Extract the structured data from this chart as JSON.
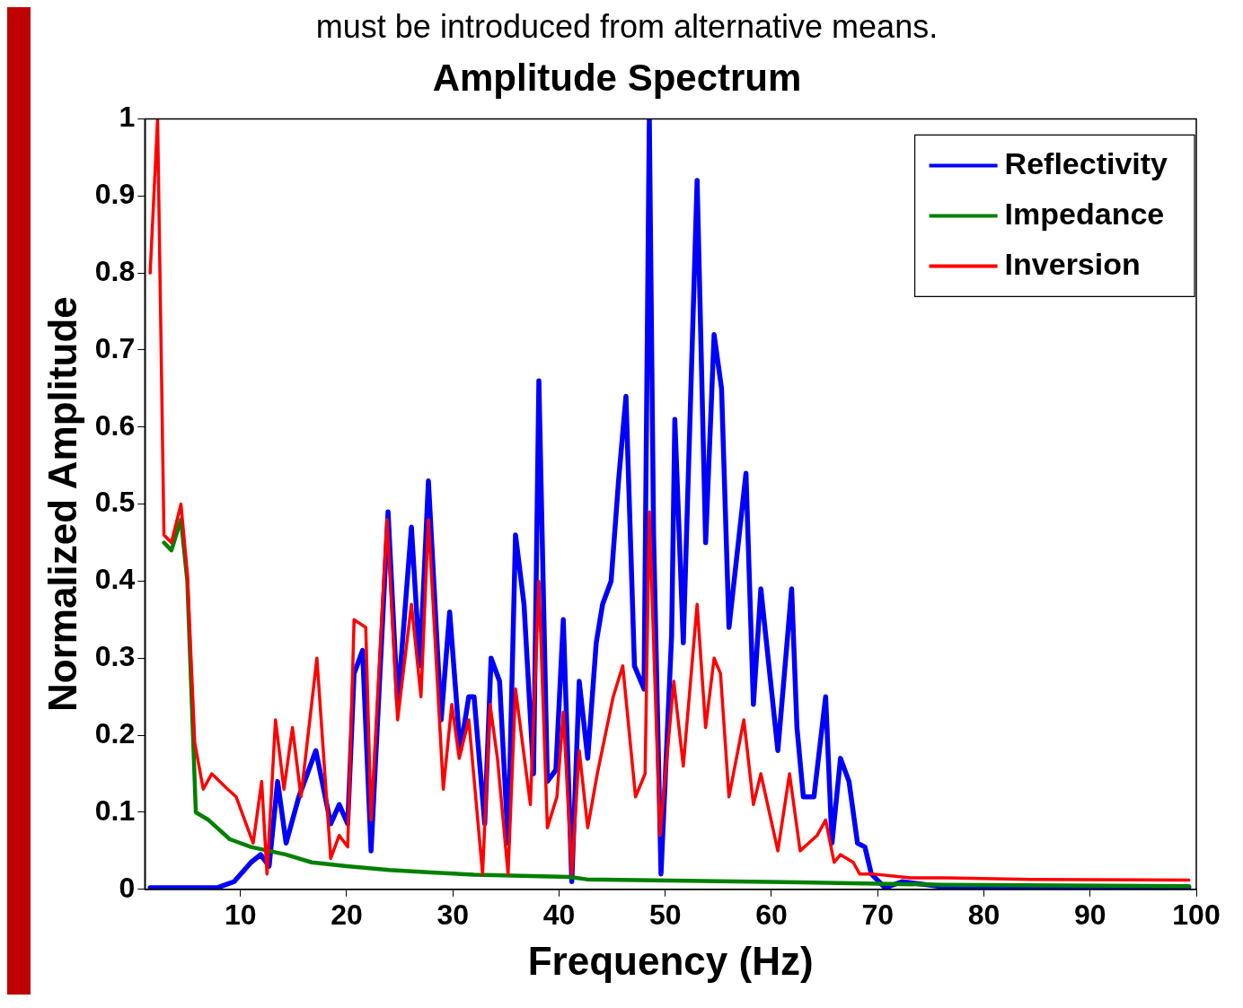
{
  "chart_data": {
    "type": "line",
    "title": "Amplitude Spectrum",
    "xlabel": "Frequency (Hz)",
    "ylabel": "Normalized Amplitude",
    "annotations": [
      "must be introduced from alternative means."
    ],
    "xlim": [
      1,
      100
    ],
    "xticks": [
      10,
      20,
      30,
      40,
      50,
      60,
      70,
      80,
      90,
      100
    ],
    "ylim": [
      0,
      1
    ],
    "yticks": [
      0,
      0.1,
      0.2,
      0.3,
      0.4,
      0.5,
      0.6,
      0.7,
      0.8,
      0.9,
      1
    ],
    "grid": false,
    "legend": "top right",
    "marker": "none",
    "line_style": "solid",
    "series": [
      {
        "name": "Reflectivity",
        "color": "#0000ff",
        "x": [
          1.5,
          7.8,
          9.4,
          11,
          11.9,
          12.7,
          13.5,
          14.3,
          15.5,
          17.1,
          18.5,
          19.3,
          20.1,
          20.7,
          21.5,
          22.3,
          23.9,
          24.8,
          26.1,
          26.9,
          27.7,
          28.9,
          29.7,
          30.7,
          31.5,
          32,
          33,
          33.6,
          34.4,
          35.2,
          35.9,
          36.7,
          37.6,
          38.1,
          38.9,
          39.7,
          40.4,
          41.2,
          41.9,
          42.7,
          43.5,
          44.1,
          44.9,
          45.6,
          46.3,
          47.1,
          48,
          48.5,
          48.9,
          49.6,
          50.6,
          50.9,
          51.7,
          53,
          53.8,
          54.6,
          55.3,
          56,
          57.6,
          58.3,
          59,
          60.6,
          61.9,
          62.4,
          63,
          64,
          65.1,
          65.7,
          66.5,
          67.3,
          68.1,
          68.8,
          69.4,
          70.7,
          72.3,
          76.4,
          84.4,
          99.3
        ],
        "values": [
          0.002,
          0.002,
          0.01,
          0.035,
          0.045,
          0.03,
          0.14,
          0.06,
          0.12,
          0.18,
          0.085,
          0.11,
          0.085,
          0.28,
          0.31,
          0.05,
          0.49,
          0.24,
          0.47,
          0.29,
          0.53,
          0.22,
          0.36,
          0.18,
          0.25,
          0.25,
          0.085,
          0.3,
          0.27,
          0.06,
          0.46,
          0.37,
          0.15,
          0.66,
          0.14,
          0.155,
          0.35,
          0.01,
          0.27,
          0.17,
          0.32,
          0.37,
          0.4,
          0.53,
          0.64,
          0.29,
          0.26,
          1,
          0.46,
          0.02,
          0.33,
          0.61,
          0.32,
          0.92,
          0.45,
          0.72,
          0.65,
          0.34,
          0.54,
          0.24,
          0.39,
          0.18,
          0.39,
          0.21,
          0.12,
          0.12,
          0.25,
          0.06,
          0.17,
          0.14,
          0.06,
          0.055,
          0.02,
          0.002,
          0.01,
          0.003,
          0.003,
          0.003
        ]
      },
      {
        "name": "Impedance",
        "color": "#008000",
        "x": [
          2.8,
          3.5,
          4.4,
          5,
          5.8,
          7,
          9,
          11,
          14.3,
          16.7,
          20,
          24,
          28,
          32,
          41,
          42.6,
          52,
          62.7,
          76,
          99.3
        ],
        "values": [
          0.45,
          0.44,
          0.48,
          0.4,
          0.1,
          0.09,
          0.065,
          0.055,
          0.045,
          0.035,
          0.03,
          0.025,
          0.022,
          0.019,
          0.016,
          0.013,
          0.011,
          0.009,
          0.006,
          0.004
        ]
      },
      {
        "name": "Inversion",
        "color": "#ff0000",
        "x": [
          1.5,
          2.2,
          2.8,
          3.5,
          4.4,
          5,
          5.7,
          6.5,
          7.3,
          8.8,
          9.6,
          11.2,
          12,
          12.5,
          13.3,
          14.1,
          14.9,
          15.7,
          17.2,
          18.5,
          19.3,
          20.1,
          20.7,
          21.8,
          22.3,
          23.8,
          24.8,
          26.1,
          27,
          27.7,
          29.1,
          29.9,
          30.6,
          31.5,
          32.8,
          33.5,
          34.2,
          35.2,
          35.9,
          37.3,
          38.1,
          38.9,
          39.8,
          40.4,
          41.2,
          41.9,
          42.7,
          43.6,
          45.1,
          46,
          47.2,
          48.1,
          48.5,
          49.5,
          50.8,
          51.7,
          53,
          53.8,
          54.6,
          55.2,
          56,
          57.4,
          58.3,
          59,
          60.6,
          61.7,
          62.7,
          64.3,
          65.1,
          65.9,
          66.5,
          67.7,
          68.3,
          69.5,
          73.1,
          76.4,
          84.4,
          99.3
        ],
        "values": [
          0.8,
          1,
          0.46,
          0.45,
          0.5,
          0.41,
          0.19,
          0.13,
          0.15,
          0.13,
          0.12,
          0.06,
          0.14,
          0.02,
          0.22,
          0.13,
          0.21,
          0.12,
          0.3,
          0.04,
          0.07,
          0.055,
          0.35,
          0.34,
          0.09,
          0.48,
          0.22,
          0.37,
          0.25,
          0.48,
          0.13,
          0.24,
          0.17,
          0.22,
          0.02,
          0.24,
          0.17,
          0.02,
          0.26,
          0.11,
          0.4,
          0.08,
          0.12,
          0.23,
          0.02,
          0.18,
          0.08,
          0.15,
          0.25,
          0.29,
          0.12,
          0.15,
          0.49,
          0.07,
          0.27,
          0.16,
          0.37,
          0.21,
          0.3,
          0.28,
          0.12,
          0.22,
          0.11,
          0.15,
          0.05,
          0.15,
          0.05,
          0.07,
          0.09,
          0.035,
          0.045,
          0.035,
          0.02,
          0.02,
          0.015,
          0.015,
          0.013,
          0.012
        ]
      }
    ]
  }
}
